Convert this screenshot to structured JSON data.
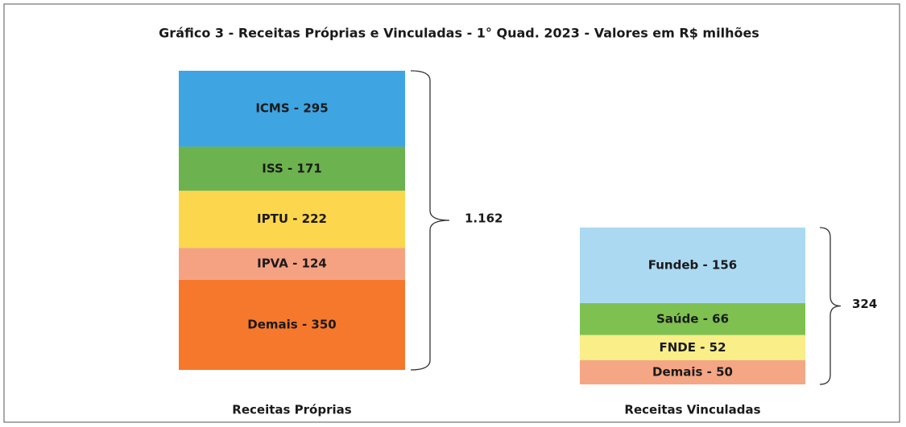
{
  "chart_data": {
    "type": "stacked_bar",
    "title": "Gráfico 3 - Receitas Próprias e Vinculadas - 1° Quad. 2023  - Valores em R$ milhões",
    "categories": [
      "Receitas Próprias",
      "Receitas Vinculadas"
    ],
    "stacks": [
      {
        "values": [
          295,
          171,
          222,
          124,
          350
        ],
        "value_labels": [
          "ICMS - 295",
          "ISS - 171",
          "IPTU - 222",
          "IPVA -  124",
          "Demais - 350"
        ],
        "colors": [
          "#3ea4e2",
          "#6cb24e",
          "#fcd64c",
          "#f5a283",
          "#f6782c"
        ]
      },
      {
        "values": [
          156,
          66,
          52,
          50
        ],
        "value_labels": [
          "Fundeb - 156",
          "Saúde - 66",
          "FNDE - 52",
          "Demais - 50"
        ],
        "colors": [
          "#abd9f1",
          "#7ec151",
          "#f9ee88",
          "#f5a684"
        ]
      }
    ],
    "totals": [
      {
        "value": 1162,
        "label": "1.162"
      },
      324
    ]
  }
}
